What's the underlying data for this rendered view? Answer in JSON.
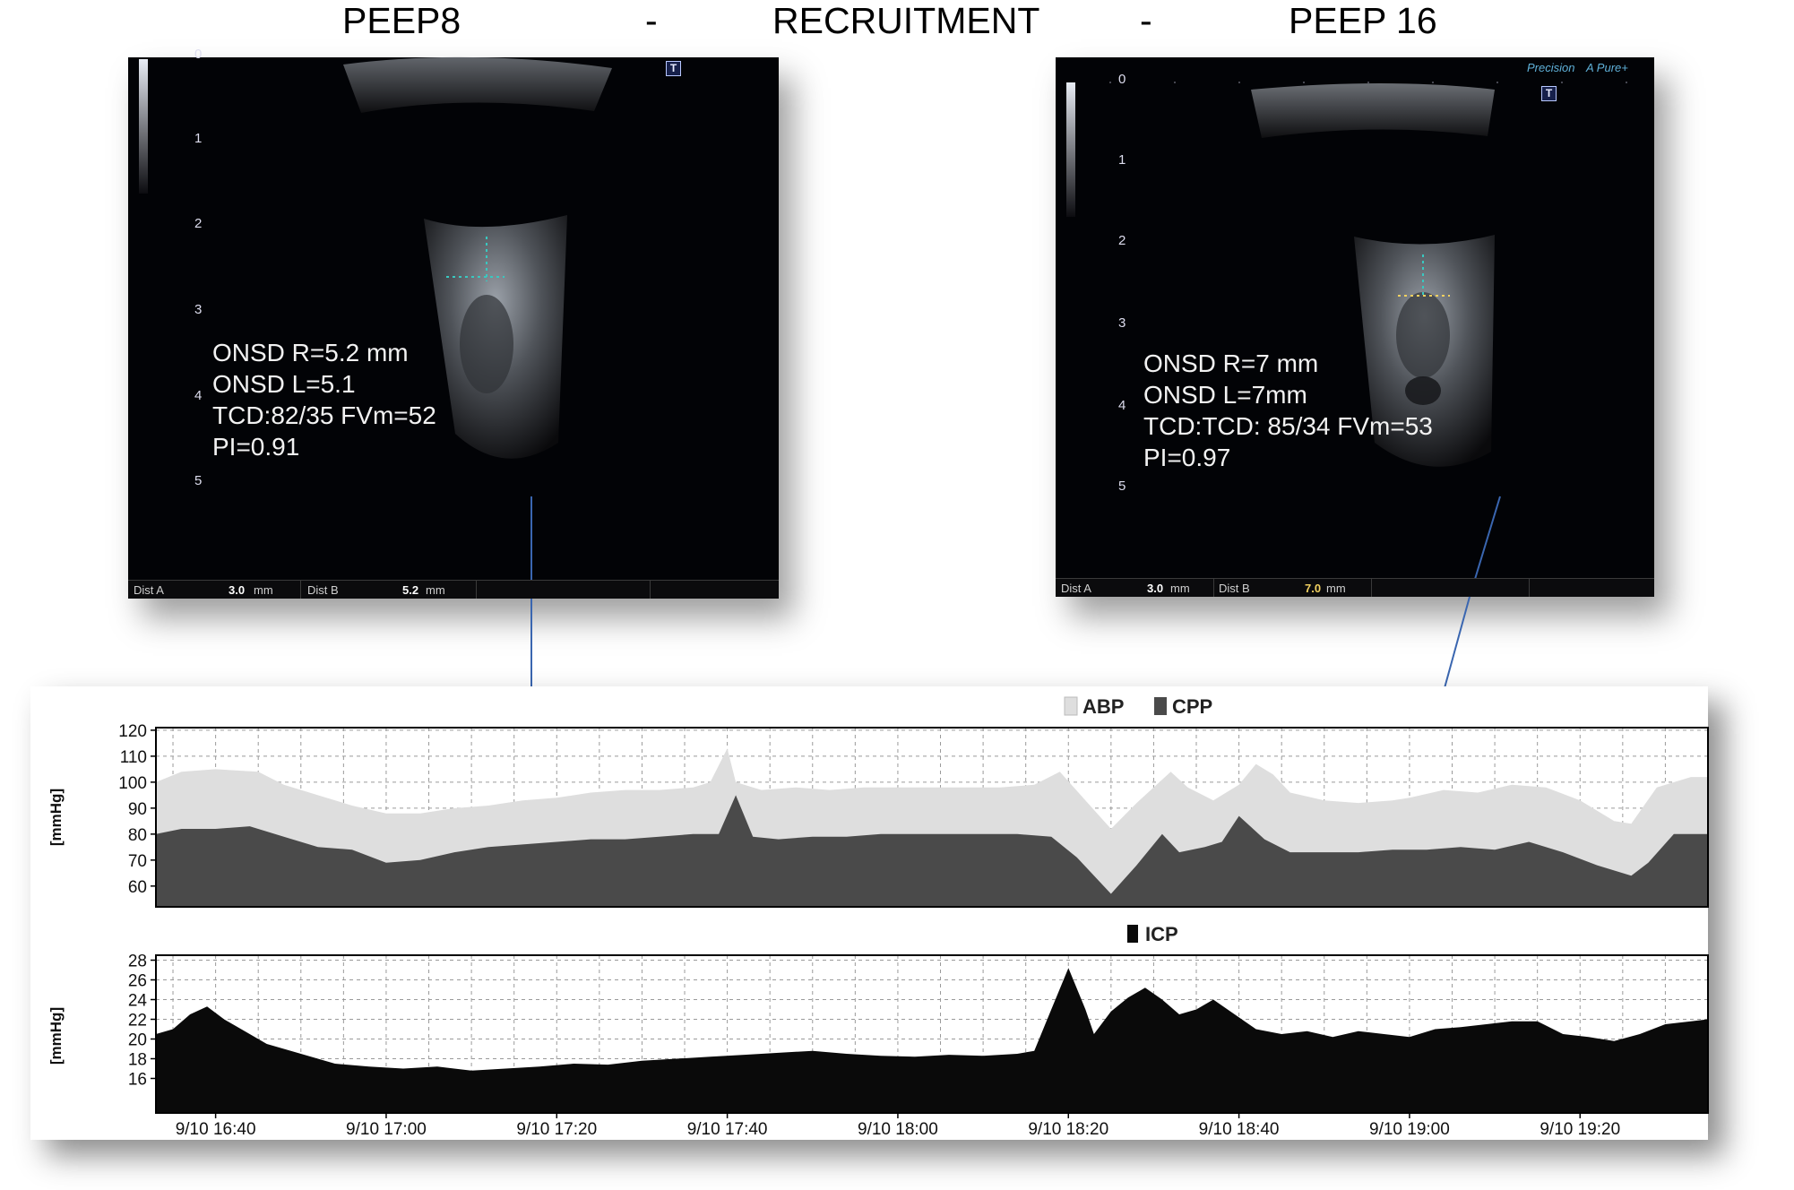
{
  "header": {
    "left": "PEEP8",
    "dash1": "-",
    "middle": "RECRUITMENT",
    "dash2": "-",
    "right": "PEEP 16"
  },
  "ultrasound_left": {
    "measurements": [
      "ONSD R=5.2 mm",
      "ONSD L=5.1",
      "TCD:82/35 FVm=52",
      "PI=0.91"
    ],
    "depth_scale": [
      "0",
      "1",
      "2",
      "3",
      "4",
      "5"
    ],
    "status_bar": {
      "dist_a_label": "Dist A",
      "dist_a_value": "3.0",
      "dist_a_unit": "mm",
      "dist_b_label": "Dist B",
      "dist_b_value": "5.2",
      "dist_b_unit": "mm"
    },
    "t_marker": "T"
  },
  "ultrasound_right": {
    "measurements": [
      "ONSD R=7 mm",
      "ONSD L=7mm",
      "TCD:TCD: 85/34 FVm=53",
      "PI=0.97"
    ],
    "depth_scale": [
      "0",
      "1",
      "2",
      "3",
      "4",
      "5"
    ],
    "status_bar": {
      "dist_a_label": "Dist A",
      "dist_a_value": "3.0",
      "dist_a_unit": "mm",
      "dist_b_label": "Dist B",
      "dist_b_value": "7.0",
      "dist_b_unit": "mm"
    },
    "brand_left": "Precision",
    "brand_right": "A Pure+",
    "t_marker": "T"
  },
  "colors": {
    "abp": "#dedede",
    "cpp": "#4a4a4a",
    "icp": "#0a0a0a",
    "arrow": "#3a66b0",
    "axis": "#000000"
  },
  "chart_data": [
    {
      "type": "area",
      "title": "",
      "legend": [
        "ABP",
        "CPP"
      ],
      "legend_position": "top-center",
      "ylabel": "[mmHg]",
      "xlabel": "",
      "ylim": [
        52,
        121
      ],
      "yticks": [
        60,
        70,
        80,
        90,
        100,
        110,
        120
      ],
      "grid": true,
      "x_ticks": [
        "9/10 16:40",
        "9/10 17:00",
        "9/10 17:20",
        "9/10 17:40",
        "9/10 18:00",
        "9/10 18:20",
        "9/10 18:40",
        "9/10 19:00",
        "9/10 19:20"
      ],
      "series": [
        {
          "name": "ABP",
          "points": [
            [
              "16:33",
              100
            ],
            [
              "16:36",
              104
            ],
            [
              "16:40",
              105
            ],
            [
              "16:45",
              104
            ],
            [
              "16:48",
              99
            ],
            [
              "16:52",
              95
            ],
            [
              "16:56",
              91
            ],
            [
              "17:00",
              88
            ],
            [
              "17:04",
              88
            ],
            [
              "17:08",
              90
            ],
            [
              "17:12",
              91
            ],
            [
              "17:16",
              93
            ],
            [
              "17:20",
              94
            ],
            [
              "17:24",
              96
            ],
            [
              "17:28",
              97
            ],
            [
              "17:32",
              97
            ],
            [
              "17:36",
              98
            ],
            [
              "17:38",
              100
            ],
            [
              "17:40",
              113
            ],
            [
              "17:41",
              100
            ],
            [
              "17:44",
              97
            ],
            [
              "17:48",
              98
            ],
            [
              "17:52",
              97
            ],
            [
              "17:56",
              98
            ],
            [
              "18:00",
              98
            ],
            [
              "18:04",
              98
            ],
            [
              "18:08",
              98
            ],
            [
              "18:12",
              98
            ],
            [
              "18:16",
              99
            ],
            [
              "18:19",
              104
            ],
            [
              "18:22",
              93
            ],
            [
              "18:25",
              82
            ],
            [
              "18:28",
              92
            ],
            [
              "18:32",
              104
            ],
            [
              "18:34",
              98
            ],
            [
              "18:37",
              93
            ],
            [
              "18:40",
              99
            ],
            [
              "18:42",
              107
            ],
            [
              "18:44",
              103
            ],
            [
              "18:46",
              96
            ],
            [
              "18:50",
              93
            ],
            [
              "18:54",
              92
            ],
            [
              "18:58",
              93
            ],
            [
              "19:00",
              94
            ],
            [
              "19:04",
              97
            ],
            [
              "19:08",
              96
            ],
            [
              "19:12",
              99
            ],
            [
              "19:16",
              98
            ],
            [
              "19:20",
              93
            ],
            [
              "19:24",
              85
            ],
            [
              "19:26",
              84
            ],
            [
              "19:29",
              98
            ],
            [
              "19:33",
              102
            ],
            [
              "19:35",
              102
            ]
          ]
        },
        {
          "name": "CPP",
          "points": [
            [
              "16:33",
              80
            ],
            [
              "16:36",
              82
            ],
            [
              "16:40",
              82
            ],
            [
              "16:44",
              83
            ],
            [
              "16:48",
              79
            ],
            [
              "16:52",
              75
            ],
            [
              "16:56",
              74
            ],
            [
              "17:00",
              69
            ],
            [
              "17:04",
              70
            ],
            [
              "17:08",
              73
            ],
            [
              "17:12",
              75
            ],
            [
              "17:16",
              76
            ],
            [
              "17:20",
              77
            ],
            [
              "17:24",
              78
            ],
            [
              "17:28",
              78
            ],
            [
              "17:32",
              79
            ],
            [
              "17:36",
              80
            ],
            [
              "17:39",
              80
            ],
            [
              "17:41",
              95
            ],
            [
              "17:43",
              79
            ],
            [
              "17:46",
              78
            ],
            [
              "17:50",
              79
            ],
            [
              "17:54",
              79
            ],
            [
              "17:58",
              80
            ],
            [
              "18:02",
              80
            ],
            [
              "18:06",
              80
            ],
            [
              "18:10",
              80
            ],
            [
              "18:14",
              80
            ],
            [
              "18:18",
              79
            ],
            [
              "18:21",
              71
            ],
            [
              "18:25",
              57
            ],
            [
              "18:28",
              68
            ],
            [
              "18:31",
              80
            ],
            [
              "18:33",
              73
            ],
            [
              "18:36",
              75
            ],
            [
              "18:38",
              77
            ],
            [
              "18:40",
              87
            ],
            [
              "18:43",
              78
            ],
            [
              "18:46",
              73
            ],
            [
              "18:50",
              73
            ],
            [
              "18:54",
              73
            ],
            [
              "18:58",
              74
            ],
            [
              "19:02",
              74
            ],
            [
              "19:06",
              75
            ],
            [
              "19:10",
              74
            ],
            [
              "19:14",
              77
            ],
            [
              "19:18",
              73
            ],
            [
              "19:22",
              68
            ],
            [
              "19:26",
              64
            ],
            [
              "19:28",
              69
            ],
            [
              "19:31",
              80
            ],
            [
              "19:35",
              80
            ]
          ]
        }
      ]
    },
    {
      "type": "area",
      "title": "",
      "legend": [
        "ICP"
      ],
      "legend_position": "top-center",
      "ylabel": "[mmHg]",
      "xlabel": "",
      "ylim": [
        12.5,
        28.5
      ],
      "yticks": [
        16,
        18,
        20,
        22,
        24,
        26,
        28
      ],
      "grid": true,
      "x_ticks": [
        "9/10 16:40",
        "9/10 17:00",
        "9/10 17:20",
        "9/10 17:40",
        "9/10 18:00",
        "9/10 18:20",
        "9/10 18:40",
        "9/10 19:00",
        "9/10 19:20"
      ],
      "series": [
        {
          "name": "ICP",
          "points": [
            [
              "16:33",
              20.5
            ],
            [
              "16:35",
              21
            ],
            [
              "16:37",
              22.5
            ],
            [
              "16:39",
              23.3
            ],
            [
              "16:41",
              22
            ],
            [
              "16:43",
              21
            ],
            [
              "16:46",
              19.5
            ],
            [
              "16:50",
              18.5
            ],
            [
              "16:54",
              17.5
            ],
            [
              "16:58",
              17.2
            ],
            [
              "17:02",
              17
            ],
            [
              "17:06",
              17.2
            ],
            [
              "17:10",
              16.8
            ],
            [
              "17:14",
              17
            ],
            [
              "17:18",
              17.2
            ],
            [
              "17:22",
              17.5
            ],
            [
              "17:26",
              17.4
            ],
            [
              "17:30",
              17.8
            ],
            [
              "17:34",
              18
            ],
            [
              "17:38",
              18.2
            ],
            [
              "17:42",
              18.4
            ],
            [
              "17:46",
              18.6
            ],
            [
              "17:50",
              18.8
            ],
            [
              "17:54",
              18.5
            ],
            [
              "17:58",
              18.3
            ],
            [
              "18:02",
              18.2
            ],
            [
              "18:06",
              18.4
            ],
            [
              "18:10",
              18.3
            ],
            [
              "18:14",
              18.5
            ],
            [
              "18:16",
              18.8
            ],
            [
              "18:18",
              23
            ],
            [
              "18:20",
              27.2
            ],
            [
              "18:22",
              23
            ],
            [
              "18:23",
              20.5
            ],
            [
              "18:25",
              22.8
            ],
            [
              "18:27",
              24.2
            ],
            [
              "18:29",
              25.2
            ],
            [
              "18:31",
              24
            ],
            [
              "18:33",
              22.5
            ],
            [
              "18:35",
              23
            ],
            [
              "18:37",
              24
            ],
            [
              "18:39",
              22.8
            ],
            [
              "18:42",
              21
            ],
            [
              "18:45",
              20.5
            ],
            [
              "18:48",
              20.8
            ],
            [
              "18:51",
              20.2
            ],
            [
              "18:54",
              20.8
            ],
            [
              "18:57",
              20.5
            ],
            [
              "19:00",
              20.2
            ],
            [
              "19:03",
              21
            ],
            [
              "19:06",
              21.2
            ],
            [
              "19:09",
              21.5
            ],
            [
              "19:12",
              21.8
            ],
            [
              "19:15",
              21.8
            ],
            [
              "19:18",
              20.5
            ],
            [
              "19:21",
              20.2
            ],
            [
              "19:24",
              19.8
            ],
            [
              "19:27",
              20.5
            ],
            [
              "19:30",
              21.5
            ],
            [
              "19:33",
              21.8
            ],
            [
              "19:35",
              22
            ]
          ]
        }
      ]
    }
  ]
}
